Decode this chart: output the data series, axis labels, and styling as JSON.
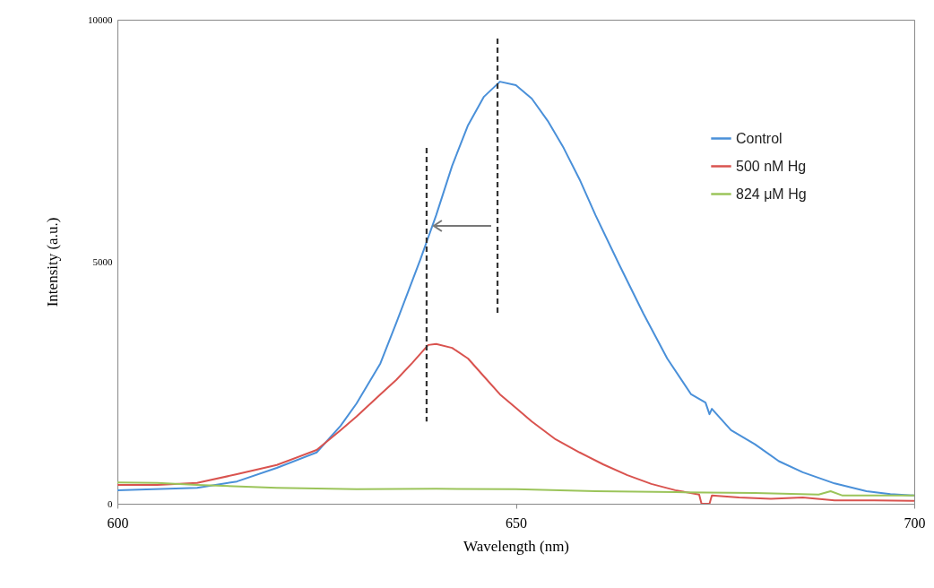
{
  "chart_data": {
    "type": "line",
    "xlabel": "Wavelength (nm)",
    "ylabel": "Intensity (a.u.)",
    "xlim": [
      600,
      700
    ],
    "xticks": [
      600,
      650,
      700
    ],
    "ylim": [
      0,
      10000
    ],
    "yticks": [
      0,
      5000,
      10000
    ],
    "grid": false,
    "legend": "top right",
    "line_style": "solid",
    "series": [
      {
        "name": "Control",
        "color": "#4a90d9",
        "x": [
          600,
          610,
          615,
          620,
          625,
          628,
          630,
          633,
          635,
          638,
          640,
          642,
          644,
          646,
          648,
          650,
          652,
          654,
          656,
          658,
          660,
          663,
          666,
          669,
          672,
          673.8,
          674.3,
          674.6,
          677,
          680,
          683,
          686,
          690,
          694,
          697,
          700
        ],
        "values": [
          280,
          330,
          460,
          740,
          1060,
          1610,
          2070,
          2900,
          3740,
          5040,
          5960,
          6980,
          7820,
          8410,
          8720,
          8650,
          8370,
          7910,
          7350,
          6700,
          5960,
          4930,
          3930,
          3000,
          2260,
          2090,
          1850,
          1960,
          1520,
          1230,
          880,
          650,
          420,
          260,
          200,
          170
        ]
      },
      {
        "name": "500 nM Hg",
        "color": "#d9534f",
        "x": [
          600,
          605,
          610,
          615,
          620,
          625,
          628,
          630,
          633,
          635,
          637,
          639,
          640,
          642,
          644,
          646,
          648,
          650,
          652,
          655,
          658,
          661,
          664,
          667,
          670,
          673,
          673.3,
          674.3,
          674.6,
          678,
          682,
          686,
          690,
          695,
          700
        ],
        "values": [
          390,
          390,
          430,
          610,
          800,
          1110,
          1520,
          1800,
          2260,
          2560,
          2910,
          3280,
          3300,
          3220,
          3000,
          2630,
          2260,
          1980,
          1700,
          1330,
          1060,
          810,
          590,
          410,
          280,
          190,
          0,
          0,
          170,
          130,
          100,
          130,
          70,
          70,
          60
        ]
      },
      {
        "name": "824 μM Hg",
        "color": "#9bc45a",
        "x": [
          600,
          605,
          610,
          620,
          630,
          640,
          650,
          660,
          670,
          680,
          688,
          689.5,
          691,
          700
        ],
        "values": [
          440,
          430,
          390,
          330,
          300,
          310,
          300,
          260,
          240,
          220,
          190,
          260,
          170,
          170
        ]
      },
      {
        "type": "line",
        "line_style": "dashed",
        "color": "#333333",
        "x": [
          647.7,
          647.7
        ],
        "values": [
          9610,
          3930
        ]
      },
      {
        "type": "line",
        "line_style": "dashed",
        "color": "#333333",
        "x": [
          638.8,
          638.8
        ],
        "values": [
          7350,
          1700
        ]
      }
    ]
  }
}
